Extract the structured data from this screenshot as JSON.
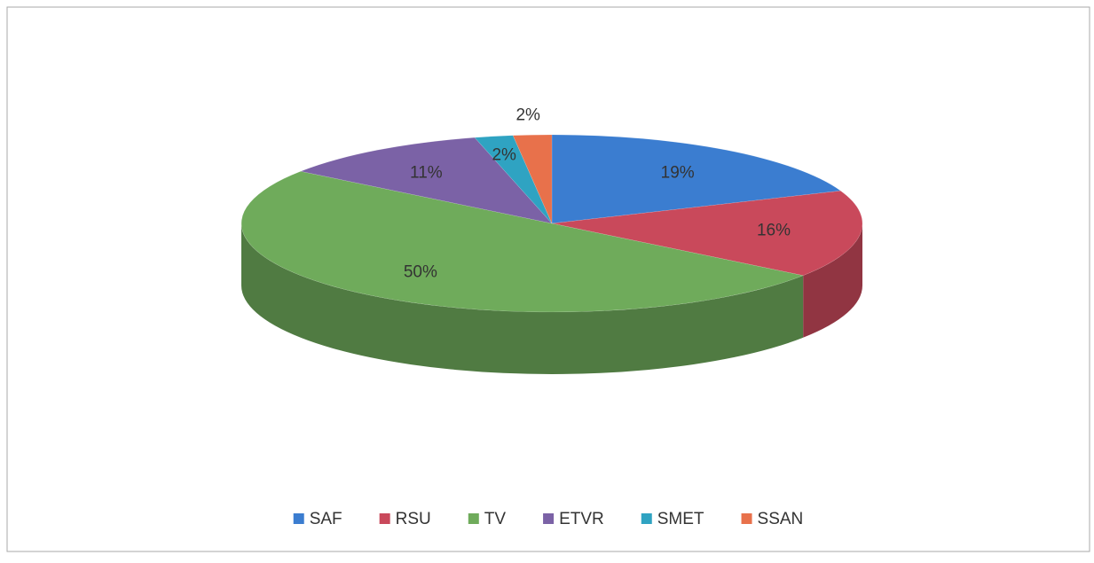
{
  "chart_data": {
    "type": "pie",
    "three_d": true,
    "categories": [
      "SAF",
      "RSU",
      "TV",
      "ETVR",
      "SMET",
      "SSAN"
    ],
    "values": [
      19,
      16,
      50,
      11,
      2,
      2
    ],
    "value_labels": [
      "19%",
      "16%",
      "50%",
      "11%",
      "2%",
      "2%"
    ],
    "colors": [
      "#3b7dd0",
      "#c9495b",
      "#6fab5b",
      "#7b62a6",
      "#2fa3c2",
      "#e8714b"
    ],
    "legend": "bottom"
  }
}
